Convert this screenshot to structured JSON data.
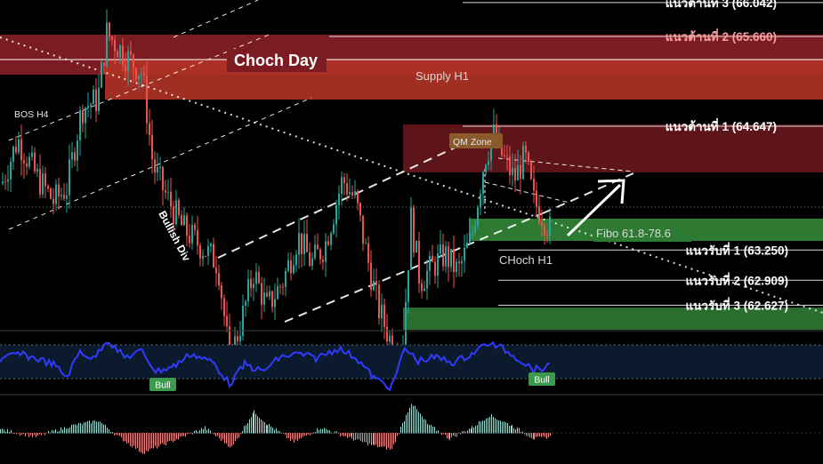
{
  "chart_data": {
    "type": "candlestick",
    "zones": {
      "choch_day": "Choch Day",
      "supply_h1": "Supply H1",
      "qm_zone": "QM Zone",
      "fibo": "Fibo 61.8-78.6",
      "choch_h1": "CHoch H1",
      "bos_h4": "BOS H4",
      "bullish_div": "Bullish Div"
    },
    "resistance_levels": [
      {
        "label": "แนวต้านที่ 3 (66.042)",
        "value": 66.042
      },
      {
        "label": "แนวต้านที่ 2 (65.660)",
        "value": 65.66
      },
      {
        "label": "แนวต้านที่ 1 (64.647)",
        "value": 64.647
      }
    ],
    "support_levels": [
      {
        "label": "แนวรับที่ 1 (63.250)",
        "value": 63.25
      },
      {
        "label": "แนวรับที่ 2 (62.909)",
        "value": 62.909
      },
      {
        "label": "แนวรับที่ 3 (62.627)",
        "value": 62.627
      }
    ],
    "rsi_signals": [
      "Bull",
      "Bull"
    ],
    "colors": {
      "up": "#26a69a",
      "down": "#ef5350",
      "supply": "#b3222a",
      "demand": "#2e7d32",
      "rsi_line": "#2f3bff"
    }
  }
}
